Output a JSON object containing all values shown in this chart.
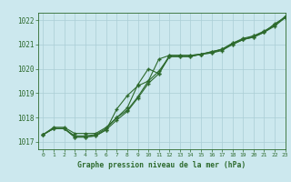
{
  "title": "Graphe pression niveau de la mer (hPa)",
  "bg_color": "#cce8ee",
  "line_color": "#2d6a2d",
  "grid_color": "#aacdd5",
  "ylim": [
    1016.7,
    1022.3
  ],
  "xlim": [
    -0.5,
    23
  ],
  "yticks": [
    1017,
    1018,
    1019,
    1020,
    1021,
    1022
  ],
  "xticks": [
    0,
    1,
    2,
    3,
    4,
    5,
    6,
    7,
    8,
    9,
    10,
    11,
    12,
    13,
    14,
    15,
    16,
    17,
    18,
    19,
    20,
    21,
    22,
    23
  ],
  "series": {
    "line1": {
      "x": [
        0,
        1,
        2,
        3,
        4,
        5,
        6,
        7,
        8,
        9,
        10,
        11,
        12,
        13,
        14,
        15,
        16,
        17,
        18,
        19,
        20,
        21,
        22,
        23
      ],
      "y": [
        1017.3,
        1017.6,
        1017.6,
        1017.35,
        1017.35,
        1017.35,
        1017.6,
        1018.0,
        1018.4,
        1019.35,
        1020.0,
        1019.8,
        1020.55,
        1020.55,
        1020.55,
        1020.6,
        1020.65,
        1020.75,
        1021.0,
        1021.2,
        1021.3,
        1021.5,
        1021.75,
        1022.1
      ]
    },
    "line2": {
      "x": [
        0,
        1,
        2,
        3,
        4,
        5,
        6,
        7,
        8,
        9,
        10,
        11,
        12,
        13,
        14,
        15,
        16,
        17,
        18,
        19,
        20,
        21,
        22,
        23
      ],
      "y": [
        1017.3,
        1017.55,
        1017.55,
        1017.2,
        1017.2,
        1017.25,
        1017.5,
        1018.35,
        1018.9,
        1019.3,
        1019.5,
        1020.4,
        1020.55,
        1020.55,
        1020.55,
        1020.6,
        1020.65,
        1020.8,
        1021.0,
        1021.2,
        1021.3,
        1021.5,
        1021.85,
        1022.1
      ]
    },
    "line3": {
      "x": [
        0,
        1,
        2,
        3,
        4,
        5,
        6,
        7,
        8,
        9,
        10,
        11,
        12,
        13,
        14,
        15,
        16,
        17,
        18,
        19,
        20,
        21,
        22,
        23
      ],
      "y": [
        1017.3,
        1017.55,
        1017.55,
        1017.25,
        1017.25,
        1017.3,
        1017.55,
        1018.0,
        1018.3,
        1018.85,
        1019.5,
        1019.9,
        1020.5,
        1020.5,
        1020.5,
        1020.6,
        1020.7,
        1020.8,
        1021.05,
        1021.2,
        1021.35,
        1021.5,
        1021.8,
        1022.1
      ]
    },
    "line4": {
      "x": [
        0,
        1,
        2,
        3,
        4,
        5,
        6,
        7,
        8,
        9,
        10,
        11,
        12,
        13,
        14,
        15,
        16,
        17,
        18,
        19,
        20,
        21,
        22,
        23
      ],
      "y": [
        1017.3,
        1017.55,
        1017.55,
        1017.2,
        1017.2,
        1017.25,
        1017.5,
        1017.9,
        1018.25,
        1018.8,
        1019.4,
        1019.8,
        1020.5,
        1020.5,
        1020.5,
        1020.6,
        1020.7,
        1020.8,
        1021.05,
        1021.25,
        1021.35,
        1021.55,
        1021.8,
        1022.15
      ]
    }
  }
}
